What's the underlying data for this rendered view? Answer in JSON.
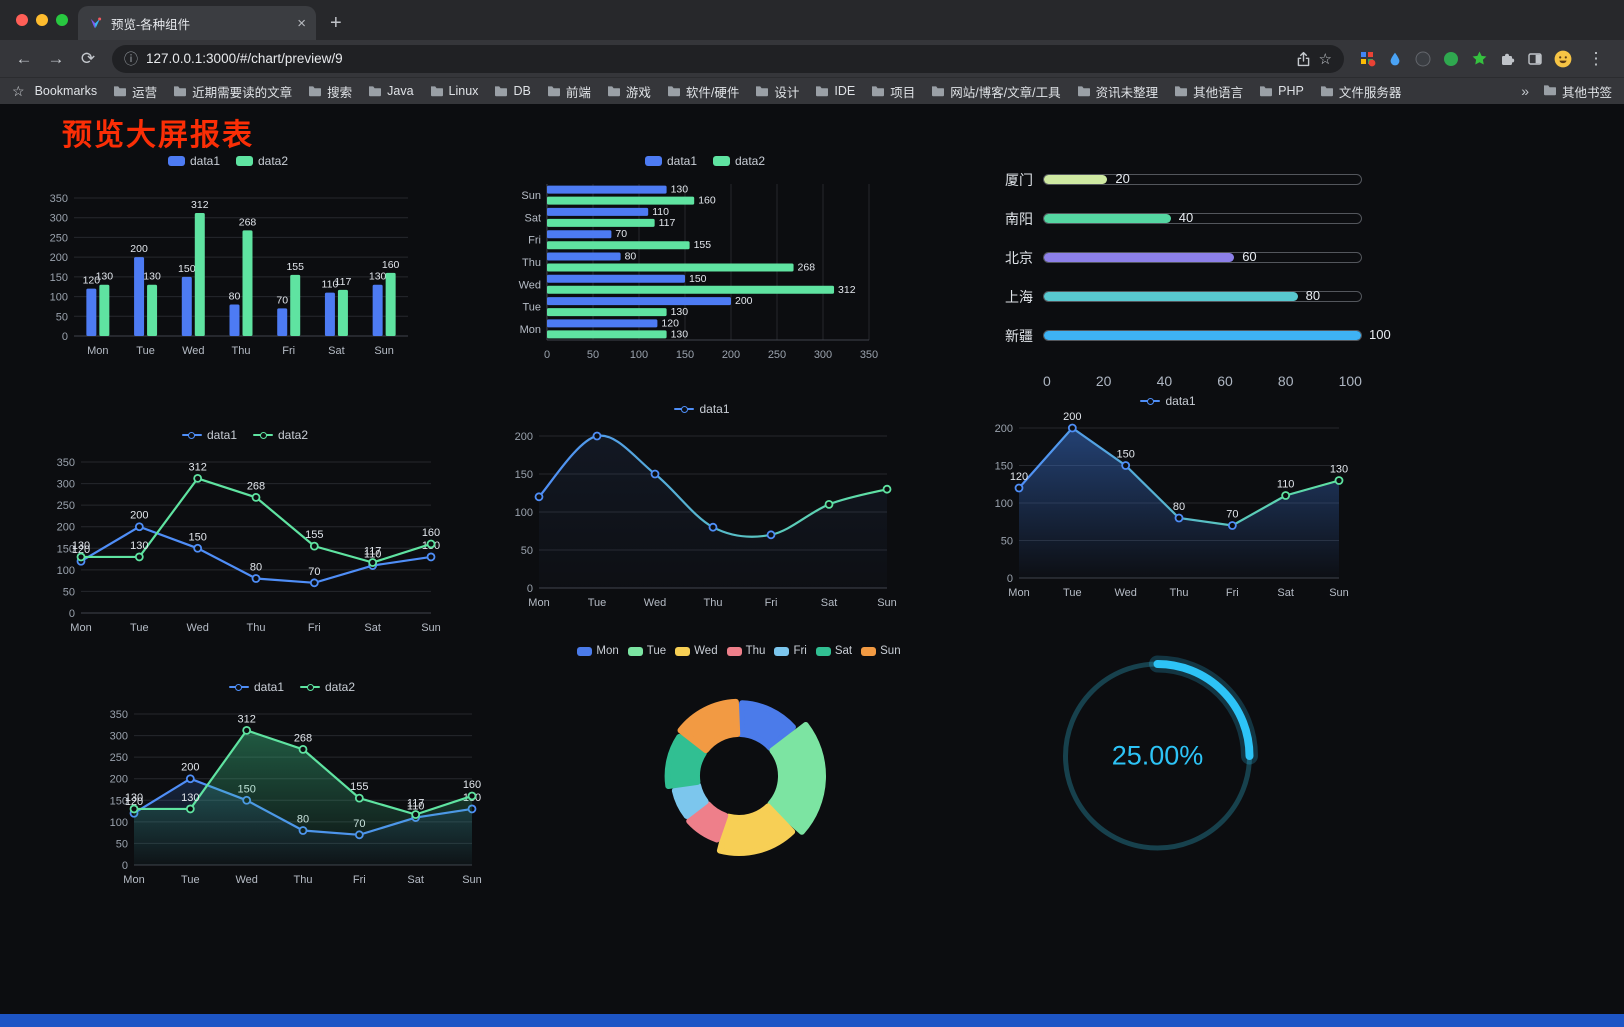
{
  "tab": {
    "title": "预览-各种组件",
    "close_glyph": "×",
    "new_tab_glyph": "+"
  },
  "nav": {
    "url": "127.0.0.1:3000/#/chart/preview/9",
    "back_glyph": "←",
    "forward_glyph": "→",
    "reload_glyph": "⟳",
    "info_glyph": "ⓘ",
    "star_glyph": "☆",
    "menu_glyph": "⋮"
  },
  "bookmarks": {
    "star_glyph": "☆",
    "label": "Bookmarks",
    "items": [
      "运营",
      "近期需要读的文章",
      "搜索",
      "Java",
      "Linux",
      "DB",
      "前端",
      "游戏",
      "软件/硬件",
      "设计",
      "IDE",
      "项目",
      "网站/博客/文章/工具",
      "资讯未整理",
      "其他语言",
      "PHP",
      "文件服务器"
    ],
    "overflow": "»",
    "other_label": "其他书签"
  },
  "page": {
    "title": "预览大屏报表",
    "title_color": "#fb2e06",
    "footer_color": "#1d55c5",
    "background": "#0c0d10"
  },
  "chart_data": [
    {
      "id": "grouped-bar",
      "type": "bar",
      "categories": [
        "Mon",
        "Tue",
        "Wed",
        "Thu",
        "Fri",
        "Sat",
        "Sun"
      ],
      "series": [
        {
          "name": "data1",
          "color": "#4d7bf3",
          "values": [
            120,
            200,
            150,
            80,
            70,
            110,
            130
          ]
        },
        {
          "name": "data2",
          "color": "#5fe3a1",
          "values": [
            130,
            130,
            312,
            268,
            155,
            117,
            160
          ]
        }
      ],
      "ylim": [
        0,
        350
      ],
      "yticks": [
        0,
        50,
        100,
        150,
        200,
        250,
        300,
        350
      ],
      "labels": true,
      "legend_position": "top"
    },
    {
      "id": "horizontal-bar",
      "type": "bar-horizontal",
      "categories": [
        "Mon",
        "Tue",
        "Wed",
        "Thu",
        "Fri",
        "Sat",
        "Sun"
      ],
      "series": [
        {
          "name": "data1",
          "color": "#4d7bf3",
          "values": [
            120,
            200,
            150,
            80,
            70,
            110,
            130
          ]
        },
        {
          "name": "data2",
          "color": "#5fe3a1",
          "values": [
            130,
            130,
            312,
            268,
            155,
            117,
            160
          ]
        }
      ],
      "xlim": [
        0,
        350
      ],
      "xticks": [
        0,
        50,
        100,
        150,
        200,
        250,
        300,
        350
      ],
      "labels": true,
      "legend_position": "top"
    },
    {
      "id": "capsule",
      "type": "capsule-bar",
      "items": [
        {
          "label": "厦门",
          "value": 20,
          "color": "#cfe9a2"
        },
        {
          "label": "南阳",
          "value": 40,
          "color": "#55d6a2"
        },
        {
          "label": "北京",
          "value": 60,
          "color": "#8d80e9"
        },
        {
          "label": "上海",
          "value": 80,
          "color": "#58c8cf"
        },
        {
          "label": "新疆",
          "value": 100,
          "color": "#3eb2f4"
        }
      ],
      "xlim": [
        0,
        100
      ],
      "xticks": [
        0,
        20,
        40,
        60,
        80,
        100
      ]
    },
    {
      "id": "two-line",
      "type": "line",
      "categories": [
        "Mon",
        "Tue",
        "Wed",
        "Thu",
        "Fri",
        "Sat",
        "Sun"
      ],
      "series": [
        {
          "name": "data1",
          "color": "#4f8ef7",
          "values": [
            120,
            200,
            150,
            80,
            70,
            110,
            130
          ]
        },
        {
          "name": "data2",
          "color": "#5fe3a1",
          "values": [
            130,
            130,
            312,
            268,
            155,
            117,
            160
          ]
        }
      ],
      "ylim": [
        0,
        350
      ],
      "yticks": [
        0,
        50,
        100,
        150,
        200,
        250,
        300,
        350
      ],
      "labels": true,
      "legend_position": "top"
    },
    {
      "id": "smooth-line",
      "type": "line",
      "smooth": true,
      "categories": [
        "Mon",
        "Tue",
        "Wed",
        "Thu",
        "Fri",
        "Sat",
        "Sun"
      ],
      "series": [
        {
          "name": "data1",
          "gradient": [
            "#4f8ef7",
            "#5fe3a1"
          ],
          "values": [
            120,
            200,
            150,
            80,
            70,
            110,
            130
          ],
          "area": "#4c7bd0",
          "area_opacity": 0.1
        }
      ],
      "ylim": [
        0,
        200
      ],
      "yticks": [
        0,
        50,
        100,
        150,
        200
      ],
      "labels": false,
      "legend_position": "top"
    },
    {
      "id": "area-line",
      "type": "line",
      "categories": [
        "Mon",
        "Tue",
        "Wed",
        "Thu",
        "Fri",
        "Sat",
        "Sun"
      ],
      "series": [
        {
          "name": "data1",
          "gradient": [
            "#4f8ef7",
            "#5fe3a1"
          ],
          "values": [
            120,
            200,
            150,
            80,
            70,
            110,
            130
          ],
          "area": "#3b76d8",
          "area_opacity": 0.5
        }
      ],
      "ylim": [
        0,
        200
      ],
      "yticks": [
        0,
        50,
        100,
        150,
        200
      ],
      "labels": true,
      "legend_position": "top"
    },
    {
      "id": "two-line-area",
      "type": "line",
      "categories": [
        "Mon",
        "Tue",
        "Wed",
        "Thu",
        "Fri",
        "Sat",
        "Sun"
      ],
      "series": [
        {
          "name": "data1",
          "color": "#4f8ef7",
          "values": [
            120,
            200,
            150,
            80,
            70,
            110,
            130
          ],
          "area": "#3b76d8",
          "area_opacity": 0.22
        },
        {
          "name": "data2",
          "color": "#5fe3a1",
          "values": [
            130,
            130,
            312,
            268,
            155,
            117,
            160
          ],
          "area": "#3fcf8e",
          "area_opacity": 0.4
        }
      ],
      "ylim": [
        0,
        350
      ],
      "yticks": [
        0,
        50,
        100,
        150,
        200,
        250,
        300,
        350
      ],
      "labels": true,
      "legend_position": "top"
    },
    {
      "id": "rose-pie",
      "type": "pie",
      "categories": [
        "Mon",
        "Tue",
        "Wed",
        "Thu",
        "Fri",
        "Sat",
        "Sun"
      ],
      "values": [
        120,
        200,
        150,
        80,
        70,
        110,
        130
      ],
      "colors": [
        "#4b7bea",
        "#7ce4a2",
        "#f7cf55",
        "#ee7f8a",
        "#7cc6ed",
        "#31bf92",
        "#f29a43"
      ],
      "inner_radius": 42,
      "rose": true,
      "legend_position": "top"
    },
    {
      "id": "progress-gauge",
      "type": "gauge",
      "value": 25,
      "label": "25.00%",
      "color": "#2dc3f6",
      "track_color": "#17414d"
    }
  ]
}
